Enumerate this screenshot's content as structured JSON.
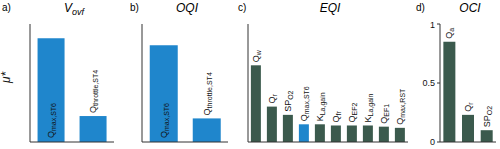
{
  "chart_data": [
    {
      "type": "bar",
      "title": "Vovf",
      "annotations": [
        "a)"
      ],
      "ylabel": "μ*",
      "categories": [
        "Qmax,ST6",
        "Qthrottle,ST4"
      ],
      "values": [
        0.88,
        0.22
      ],
      "colors": [
        "#1f86cc",
        "#1f86cc"
      ],
      "ylim": [
        0,
        1
      ],
      "yticks": [
        0,
        0.5,
        1
      ],
      "tick_labels": false
    },
    {
      "type": "bar",
      "title": "OQI",
      "annotations": [
        "b)"
      ],
      "categories": [
        "Qmax,ST6",
        "Qthrottle,ST4"
      ],
      "values": [
        0.82,
        0.2
      ],
      "colors": [
        "#1f86cc",
        "#1f86cc"
      ],
      "ylim": [
        0,
        1
      ],
      "yticks": [
        0,
        0.5,
        1
      ],
      "tick_labels": false
    },
    {
      "type": "bar",
      "title": "EQI",
      "annotations": [
        "c)"
      ],
      "categories": [
        "Qw",
        "Qr",
        "SPO2",
        "Qmax,ST6",
        "KLa,gain",
        "Qfr",
        "QEF2",
        "KLa,gain",
        "QEF1",
        "Qmax,RST"
      ],
      "values": [
        0.65,
        0.3,
        0.23,
        0.15,
        0.15,
        0.14,
        0.14,
        0.14,
        0.13,
        0.12
      ],
      "colors": [
        "#3b5a4d",
        "#3b5a4d",
        "#3b5a4d",
        "#1f86cc",
        "#3b5a4d",
        "#3b5a4d",
        "#3b5a4d",
        "#3b5a4d",
        "#3b5a4d",
        "#3b5a4d"
      ],
      "ylim": [
        0,
        1
      ],
      "yticks": [
        0,
        0.5,
        1
      ],
      "tick_labels": false
    },
    {
      "type": "bar",
      "title": "OCI",
      "annotations": [
        "d)"
      ],
      "categories": [
        "Qa",
        "Qr",
        "SPO2"
      ],
      "values": [
        0.85,
        0.23,
        0.1
      ],
      "colors": [
        "#3b5a4d",
        "#3b5a4d",
        "#3b5a4d"
      ],
      "ylim": [
        0,
        1
      ],
      "yticks": [
        0,
        0.5,
        1
      ],
      "tick_labels": "y"
    }
  ]
}
